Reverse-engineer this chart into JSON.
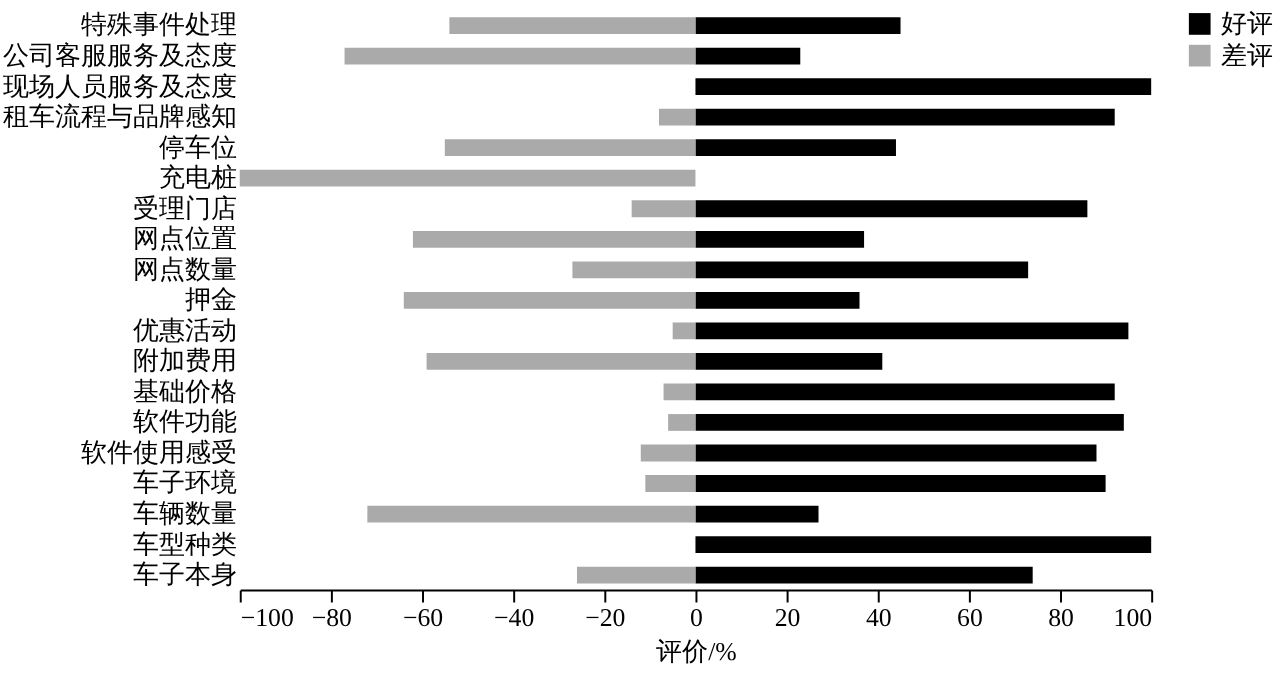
{
  "chart_data": {
    "type": "bar",
    "orientation": "horizontal",
    "stacked": true,
    "xlabel": "评价/%",
    "categories": [
      "特殊事件处理",
      "公司客服服务及态度",
      "现场人员服务及态度",
      "租车流程与品牌感知",
      "停车位",
      "充电桩",
      "受理门店",
      "网点位置",
      "网点数量",
      "押金",
      "优惠活动",
      "附加费用",
      "基础价格",
      "软件功能",
      "软件使用感受",
      "车子环境",
      "车辆数量",
      "车型种类",
      "车子本身"
    ],
    "series": [
      {
        "name": "好评",
        "color": "#000000",
        "values": [
          45,
          23,
          100,
          92,
          44,
          0,
          86,
          37,
          73,
          36,
          95,
          41,
          92,
          94,
          88,
          90,
          27,
          100,
          74
        ]
      },
      {
        "name": "差评",
        "color": "#aaaaaa",
        "values": [
          -54,
          -77,
          0,
          -8,
          -55,
          -100,
          -14,
          -62,
          -27,
          -64,
          -5,
          -59,
          -7,
          -6,
          -12,
          -11,
          -72,
          0,
          -26
        ]
      }
    ],
    "xlim": [
      -100,
      100
    ],
    "xticks": [
      -100,
      -80,
      -60,
      -40,
      -20,
      0,
      20,
      40,
      60,
      80,
      100
    ],
    "grid": false,
    "legend": "top right"
  }
}
